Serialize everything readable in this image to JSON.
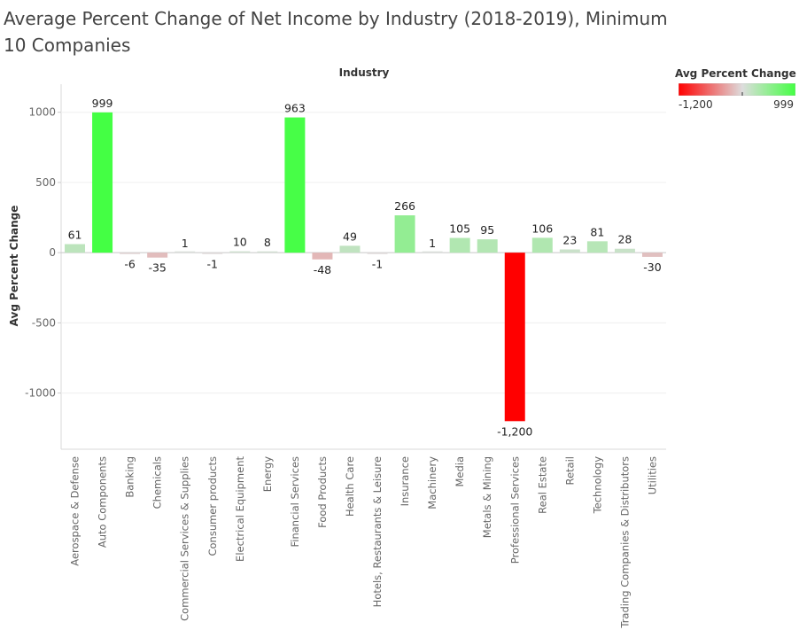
{
  "title": "Average Percent Change of Net Income by Industry (2018-2019), Minimum 10 Companies",
  "colors": {
    "negative_max": "#ff0000",
    "neutral": "#dddddd",
    "positive_max": "#44ff44"
  },
  "legend": {
    "title": "Avg Percent Change",
    "min_label": "-1,200",
    "max_label": "999"
  },
  "chart_data": {
    "type": "bar",
    "column_header": "Industry",
    "ylabel": "Avg Percent Change",
    "ylim": [
      -1400,
      1200
    ],
    "yticks": [
      1000,
      500,
      0,
      -500,
      -1000
    ],
    "ytick_labels": [
      "1000",
      "500",
      "0",
      "-500",
      "-1000"
    ],
    "categories": [
      "Aerospace & Defense",
      "Auto Components",
      "Banking",
      "Chemicals",
      "Commercial Services & Supplies",
      "Consumer products",
      "Electrical Equipment",
      "Energy",
      "Financial Services",
      "Food Products",
      "Health Care",
      "Hotels, Restaurants & Leisure",
      "Insurance",
      "Machinery",
      "Media",
      "Metals & Mining",
      "Professional Services",
      "Real Estate",
      "Retail",
      "Technology",
      "Trading Companies & Distributors",
      "Utilities"
    ],
    "values": [
      61,
      999,
      -6,
      -35,
      1,
      -1,
      10,
      8,
      963,
      -48,
      49,
      -1,
      266,
      1,
      105,
      95,
      -1200,
      106,
      23,
      81,
      28,
      -30
    ],
    "value_labels": [
      "61",
      "999",
      "-6",
      "-35",
      "1",
      "-1",
      "10",
      "8",
      "963",
      "-48",
      "49",
      "-1",
      "266",
      "1",
      "105",
      "95",
      "-1,200",
      "106",
      "23",
      "81",
      "28",
      "-30"
    ],
    "color_range": [
      -1200,
      999
    ],
    "grid": true
  }
}
